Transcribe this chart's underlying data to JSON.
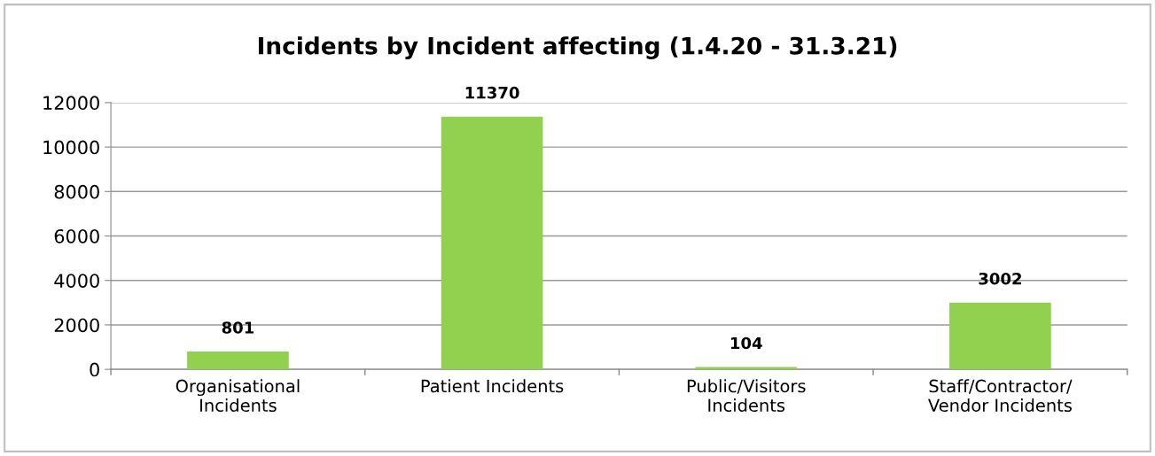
{
  "chart_data": {
    "type": "bar",
    "title": "Incidents by Incident affecting (1.4.20 - 31.3.21)",
    "categories": [
      "Organisational\nIncidents",
      "Patient Incidents",
      "Public/Visitors\nIncidents",
      "Staff/Contractor/\nVendor Incidents"
    ],
    "values": [
      801,
      11370,
      104,
      3002
    ],
    "color": "#92d050",
    "ylim": [
      0,
      12000
    ],
    "yticks": [
      0,
      2000,
      4000,
      6000,
      8000,
      10000,
      12000
    ],
    "grid": "y",
    "data_labels": true,
    "legend": false
  }
}
